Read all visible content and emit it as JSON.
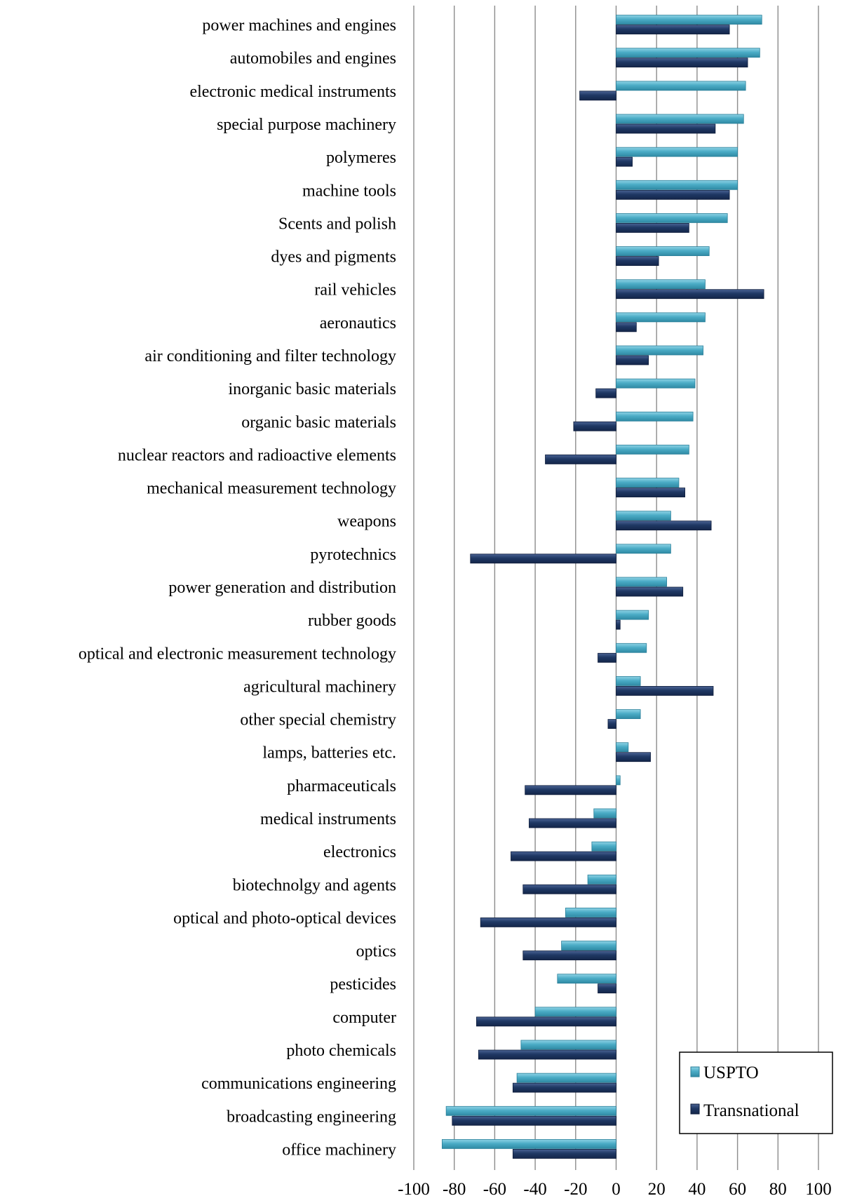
{
  "colors": {
    "uspto": "#4bacc6",
    "transnational": "#1f3864",
    "grid": "#8c8c8c"
  },
  "chart_data": {
    "type": "bar",
    "orientation": "horizontal",
    "title": "",
    "xlabel": "",
    "ylabel": "",
    "xlim": [
      -100,
      100
    ],
    "x_ticks": [
      "-100",
      "-80",
      "-60",
      "-40",
      "-20",
      "0",
      "20",
      "40",
      "60",
      "80",
      "100"
    ],
    "grid": "vertical",
    "legend_position": "bottom-right",
    "categories": [
      "power machines and engines",
      "automobiles and engines",
      "electronic medical instruments",
      "special purpose machinery",
      "polymeres",
      "machine tools",
      "Scents and polish",
      "dyes and pigments",
      "rail vehicles",
      "aeronautics",
      "air conditioning and filter technology",
      "inorganic basic materials",
      "organic basic materials",
      "nuclear reactors and radioactive elements",
      "mechanical measurement technology",
      "weapons",
      "pyrotechnics",
      "power generation and distribution",
      "rubber goods",
      "optical and electronic measurement technology",
      "agricultural machinery",
      "other special chemistry",
      "lamps, batteries etc.",
      "pharmaceuticals",
      "medical instruments",
      "electronics",
      "biotechnolgy and agents",
      "optical and photo-optical devices",
      "optics",
      "pesticides",
      "computer",
      "photo chemicals",
      "communications engineering",
      "broadcasting engineering",
      "office machinery"
    ],
    "series": [
      {
        "name": "USPTO",
        "values": [
          72,
          71,
          64,
          63,
          60,
          60,
          55,
          46,
          44,
          44,
          43,
          39,
          38,
          36,
          31,
          27,
          27,
          25,
          16,
          15,
          12,
          12,
          6,
          2,
          -11,
          -12,
          -14,
          -25,
          -27,
          -29,
          -40,
          -47,
          -49,
          -84,
          -86
        ]
      },
      {
        "name": "Transnational",
        "values": [
          56,
          65,
          -18,
          49,
          8,
          56,
          36,
          21,
          73,
          10,
          16,
          -10,
          -21,
          -35,
          34,
          47,
          -72,
          33,
          2,
          -9,
          48,
          -4,
          17,
          -45,
          -43,
          -52,
          -46,
          -67,
          -46,
          -9,
          -69,
          -68,
          -51,
          -81,
          -51
        ]
      }
    ]
  }
}
